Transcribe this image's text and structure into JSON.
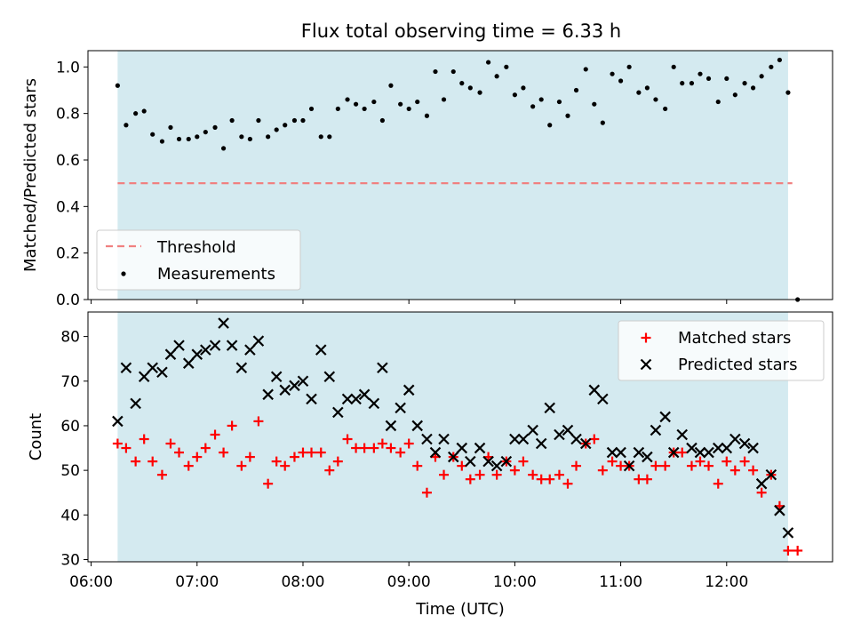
{
  "title": "Flux total observing time = 6.33 h",
  "colors": {
    "shade": "#d4eaf0",
    "threshold": "#f08080",
    "measurement": "#000000",
    "matched": "#ff0000",
    "predicted": "#000000"
  },
  "chart_data": [
    {
      "type": "scatter",
      "panel": "top",
      "title": "Flux total observing time = 6.33 h",
      "xlabel": "",
      "ylabel": "Matched/Predicted stars",
      "xlim_hours": [
        5.97,
        13.0
      ],
      "ylim": [
        0,
        1.07
      ],
      "yticks": [
        0.0,
        0.2,
        0.4,
        0.6,
        0.8,
        1.0
      ],
      "ytick_labels": [
        "0.0",
        "0.2",
        "0.4",
        "0.6",
        "0.8",
        "1.0"
      ],
      "shaded_span_hours": [
        6.25,
        12.58
      ],
      "legend_position": "lower-left",
      "threshold": {
        "name": "Threshold",
        "value": 0.5,
        "x_range_hours": [
          6.25,
          12.62
        ]
      },
      "measurements": {
        "name": "Measurements",
        "x_hours": [
          6.25,
          6.33,
          6.42,
          6.5,
          6.58,
          6.67,
          6.75,
          6.83,
          6.92,
          7.0,
          7.08,
          7.17,
          7.25,
          7.33,
          7.42,
          7.5,
          7.58,
          7.67,
          7.75,
          7.83,
          7.92,
          8.0,
          8.08,
          8.17,
          8.25,
          8.33,
          8.42,
          8.5,
          8.58,
          8.67,
          8.75,
          8.83,
          8.92,
          9.0,
          9.08,
          9.17,
          9.25,
          9.33,
          9.42,
          9.5,
          9.58,
          9.67,
          9.75,
          9.83,
          9.92,
          10.0,
          10.08,
          10.17,
          10.25,
          10.33,
          10.42,
          10.5,
          10.58,
          10.67,
          10.75,
          10.83,
          10.92,
          11.0,
          11.08,
          11.17,
          11.25,
          11.33,
          11.42,
          11.5,
          11.58,
          11.67,
          11.75,
          11.83,
          11.92,
          12.0,
          12.08,
          12.17,
          12.25,
          12.33,
          12.42,
          12.5,
          12.58,
          12.67
        ],
        "values": [
          0.92,
          0.75,
          0.8,
          0.81,
          0.71,
          0.68,
          0.74,
          0.69,
          0.69,
          0.7,
          0.72,
          0.74,
          0.65,
          0.77,
          0.7,
          0.69,
          0.77,
          0.7,
          0.73,
          0.75,
          0.77,
          0.77,
          0.82,
          0.7,
          0.7,
          0.82,
          0.86,
          0.84,
          0.82,
          0.85,
          0.77,
          0.92,
          0.84,
          0.82,
          0.85,
          0.79,
          0.98,
          0.86,
          0.98,
          0.93,
          0.91,
          0.89,
          1.02,
          0.96,
          1.0,
          0.88,
          0.91,
          0.83,
          0.86,
          0.75,
          0.85,
          0.79,
          0.9,
          0.99,
          0.84,
          0.76,
          0.97,
          0.94,
          1.0,
          0.89,
          0.91,
          0.86,
          0.82,
          1.0,
          0.93,
          0.93,
          0.97,
          0.95,
          0.85,
          0.95,
          0.88,
          0.93,
          0.91,
          0.96,
          1.0,
          1.03,
          0.89,
          0.0
        ]
      }
    },
    {
      "type": "scatter",
      "panel": "bottom",
      "xlabel": "Time (UTC)",
      "ylabel": "Count",
      "xlim_hours": [
        5.97,
        13.0
      ],
      "ylim": [
        29.5,
        85.5
      ],
      "yticks": [
        30,
        40,
        50,
        60,
        70,
        80
      ],
      "ytick_labels": [
        "30",
        "40",
        "50",
        "60",
        "70",
        "80"
      ],
      "xticks_hours": [
        6,
        7,
        8,
        9,
        10,
        11,
        12
      ],
      "xtick_labels": [
        "06:00",
        "07:00",
        "08:00",
        "09:00",
        "10:00",
        "11:00",
        "12:00"
      ],
      "shaded_span_hours": [
        6.25,
        12.58
      ],
      "legend_position": "top-right",
      "series": [
        {
          "name": "Matched stars",
          "marker": "plus",
          "x_hours": [
            6.25,
            6.33,
            6.42,
            6.5,
            6.58,
            6.67,
            6.75,
            6.83,
            6.92,
            7.0,
            7.08,
            7.17,
            7.25,
            7.33,
            7.42,
            7.5,
            7.58,
            7.67,
            7.75,
            7.83,
            7.92,
            8.0,
            8.08,
            8.17,
            8.25,
            8.33,
            8.42,
            8.5,
            8.58,
            8.67,
            8.75,
            8.83,
            8.92,
            9.0,
            9.08,
            9.17,
            9.25,
            9.33,
            9.42,
            9.5,
            9.58,
            9.67,
            9.75,
            9.83,
            9.92,
            10.0,
            10.08,
            10.17,
            10.25,
            10.33,
            10.42,
            10.5,
            10.58,
            10.67,
            10.75,
            10.83,
            10.92,
            11.0,
            11.08,
            11.17,
            11.25,
            11.33,
            11.42,
            11.5,
            11.58,
            11.67,
            11.75,
            11.83,
            11.92,
            12.0,
            12.08,
            12.17,
            12.25,
            12.33,
            12.42,
            12.5,
            12.58,
            12.67
          ],
          "values": [
            56,
            55,
            52,
            57,
            52,
            49,
            56,
            54,
            51,
            53,
            55,
            58,
            54,
            60,
            51,
            53,
            61,
            47,
            52,
            51,
            53,
            54,
            54,
            54,
            50,
            52,
            57,
            55,
            55,
            55,
            56,
            55,
            54,
            56,
            51,
            45,
            53,
            49,
            53,
            51,
            48,
            49,
            53,
            49,
            52,
            50,
            52,
            49,
            48,
            48,
            49,
            47,
            51,
            56,
            57,
            50,
            52,
            51,
            51,
            48,
            48,
            51,
            51,
            54,
            54,
            51,
            52,
            51,
            47,
            52,
            50,
            52,
            50,
            45,
            49,
            42,
            32,
            32
          ]
        },
        {
          "name": "Predicted stars",
          "marker": "x",
          "x_hours": [
            6.25,
            6.33,
            6.42,
            6.5,
            6.58,
            6.67,
            6.75,
            6.83,
            6.92,
            7.0,
            7.08,
            7.17,
            7.25,
            7.33,
            7.42,
            7.5,
            7.58,
            7.67,
            7.75,
            7.83,
            7.92,
            8.0,
            8.08,
            8.17,
            8.25,
            8.33,
            8.42,
            8.5,
            8.58,
            8.67,
            8.75,
            8.83,
            8.92,
            9.0,
            9.08,
            9.17,
            9.25,
            9.33,
            9.42,
            9.5,
            9.58,
            9.67,
            9.75,
            9.83,
            9.92,
            10.0,
            10.08,
            10.17,
            10.25,
            10.33,
            10.42,
            10.5,
            10.58,
            10.67,
            10.75,
            10.83,
            10.92,
            11.0,
            11.08,
            11.17,
            11.25,
            11.33,
            11.42,
            11.5,
            11.58,
            11.67,
            11.75,
            11.83,
            11.92,
            12.0,
            12.08,
            12.17,
            12.25,
            12.33,
            12.42,
            12.5,
            12.58
          ],
          "values": [
            61,
            73,
            65,
            71,
            73,
            72,
            76,
            78,
            74,
            76,
            77,
            78,
            83,
            78,
            73,
            77,
            79,
            67,
            71,
            68,
            69,
            70,
            66,
            77,
            71,
            63,
            66,
            66,
            67,
            65,
            73,
            60,
            64,
            68,
            60,
            57,
            54,
            57,
            53,
            55,
            52,
            55,
            52,
            51,
            52,
            57,
            57,
            59,
            56,
            64,
            58,
            59,
            57,
            56,
            68,
            66,
            54,
            54,
            51,
            54,
            53,
            59,
            62,
            54,
            58,
            55,
            54,
            54,
            55,
            55,
            57,
            56,
            55,
            47,
            49,
            41,
            36
          ]
        }
      ]
    }
  ]
}
